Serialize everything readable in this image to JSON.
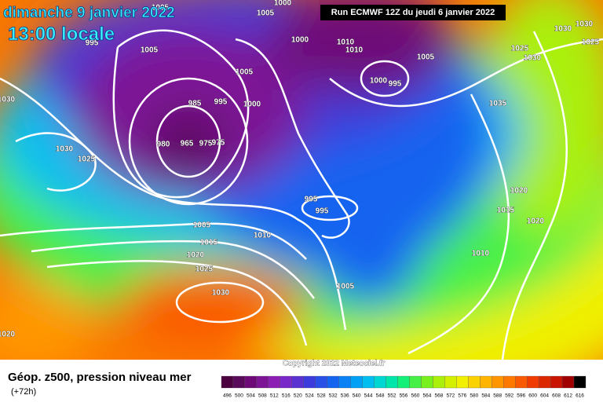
{
  "header": {
    "title": "dimanche 9 janvier 2022",
    "subtitle": "13:00 locale",
    "run": "Run ECMWF 12Z du jeudi 6 janvier 2022"
  },
  "copyright": "Copyright 2022 Meteociel.fr",
  "legend": {
    "title": "Géop. z500, pression niveau mer",
    "lead": "(+72h)",
    "values": [
      496,
      500,
      504,
      508,
      512,
      516,
      520,
      524,
      528,
      532,
      536,
      540,
      544,
      548,
      552,
      556,
      560,
      564,
      568,
      572,
      576,
      580,
      584,
      588,
      592,
      596,
      600,
      604,
      608,
      612,
      616
    ],
    "colors": [
      "#4b0040",
      "#5a0a5a",
      "#6e0a78",
      "#7d1496",
      "#8c1eb4",
      "#7828c8",
      "#5a32d2",
      "#3c3cdc",
      "#2850e6",
      "#1464f0",
      "#0a82f5",
      "#00a0f5",
      "#00bef0",
      "#00d7d2",
      "#00e6aa",
      "#14f078",
      "#46f046",
      "#78f01e",
      "#aaf00a",
      "#d2f000",
      "#f0f000",
      "#fad200",
      "#ffb400",
      "#ff9600",
      "#ff7800",
      "#fa5a00",
      "#f03c00",
      "#dc2800",
      "#c81400",
      "#a00000",
      "#000000"
    ]
  },
  "isobars": {
    "labels": [
      "1005",
      "1000",
      "1005",
      "995",
      "1005",
      "1000",
      "1010",
      "1010",
      "1005",
      "1005",
      "1000",
      "995",
      "985",
      "995",
      "1000",
      "980",
      "965",
      "975",
      "975",
      "1030",
      "1025",
      "1030",
      "1035",
      "1025",
      "1030",
      "1030",
      "1030",
      "1025",
      "1020",
      "1015",
      "1020",
      "995",
      "995",
      "1005",
      "1010",
      "1015",
      "1020",
      "1025",
      "1010",
      "1005",
      "1030",
      "1020"
    ]
  }
}
